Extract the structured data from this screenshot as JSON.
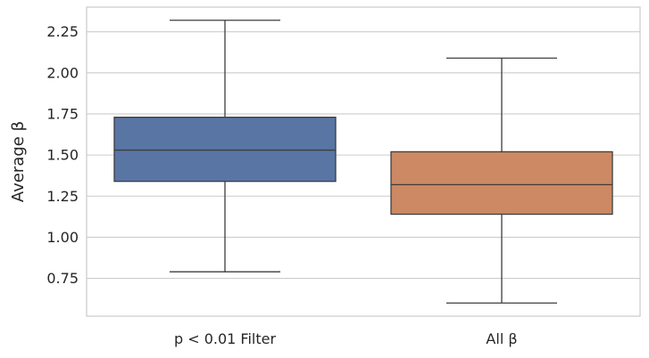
{
  "chart_data": {
    "type": "box",
    "title": "",
    "xlabel": "",
    "ylabel": "Average β",
    "ylim": [
      0.52,
      2.4
    ],
    "grid": "horizontal",
    "yticks": [
      0.75,
      1.0,
      1.25,
      1.5,
      1.75,
      2.0,
      2.25
    ],
    "ytick_labels": [
      "0.75",
      "1.00",
      "1.25",
      "1.50",
      "1.75",
      "2.00",
      "2.25"
    ],
    "categories": [
      "p < 0.01 Filter",
      "All β"
    ],
    "boxes": [
      {
        "category": "p < 0.01 Filter",
        "min": 0.79,
        "q1": 1.34,
        "median": 1.53,
        "q3": 1.73,
        "max": 2.32,
        "color": "#5975a4"
      },
      {
        "category": "All β",
        "min": 0.6,
        "q1": 1.14,
        "median": 1.32,
        "q3": 1.52,
        "max": 2.09,
        "color": "#cc8963"
      }
    ],
    "colors": {
      "background": "#ffffff",
      "grid": "#cccccc",
      "spine": "#cccccc",
      "whisker": "#3d3d3d"
    }
  }
}
